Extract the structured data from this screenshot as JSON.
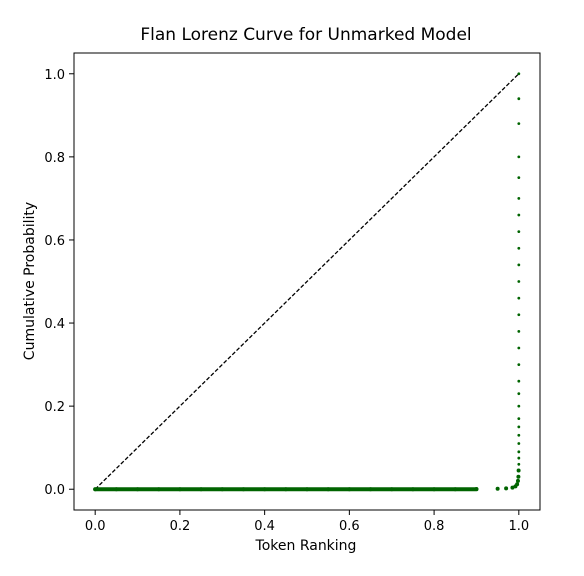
{
  "chart_data": {
    "type": "scatter",
    "title": "Flan Lorenz Curve for Unmarked Model",
    "xlabel": "Token Ranking",
    "ylabel": "Cumulative Probability",
    "xlim": [
      -0.05,
      1.05
    ],
    "ylim": [
      -0.05,
      1.05
    ],
    "xticks": [
      0.0,
      0.2,
      0.4,
      0.6,
      0.8,
      1.0
    ],
    "yticks": [
      0.0,
      0.2,
      0.4,
      0.6,
      0.8,
      1.0
    ],
    "xtick_labels": [
      "0.0",
      "0.2",
      "0.4",
      "0.6",
      "0.8",
      "1.0"
    ],
    "ytick_labels": [
      "0.0",
      "0.2",
      "0.4",
      "0.6",
      "0.8",
      "1.0"
    ],
    "grid": false,
    "legend": "none",
    "reference_line": {
      "style": "dashed",
      "color": "#000000",
      "x": [
        0.0,
        1.0
      ],
      "y": [
        0.0,
        1.0
      ]
    },
    "series": [
      {
        "color": "#006400",
        "marker": "point",
        "x": [
          0.0,
          0.05,
          0.1,
          0.15,
          0.2,
          0.25,
          0.3,
          0.35,
          0.4,
          0.45,
          0.5,
          0.55,
          0.6,
          0.65,
          0.7,
          0.75,
          0.8,
          0.85,
          0.9,
          0.95,
          0.97,
          0.985,
          0.992,
          0.996,
          0.998,
          0.999,
          0.9995,
          1.0,
          1.0,
          1.0,
          1.0,
          1.0,
          1.0,
          1.0,
          1.0,
          1.0,
          1.0,
          1.0,
          1.0,
          1.0,
          1.0,
          1.0,
          1.0,
          1.0,
          1.0,
          1.0,
          1.0,
          1.0,
          1.0,
          1.0,
          1.0,
          1.0,
          1.0
        ],
        "y": [
          0.0,
          0.0,
          0.0,
          0.0,
          0.0,
          0.0,
          0.0,
          0.0,
          0.0,
          0.0,
          0.0,
          0.0,
          0.0,
          0.0,
          0.0,
          0.0,
          0.0,
          0.0,
          0.0005,
          0.001,
          0.002,
          0.004,
          0.007,
          0.012,
          0.02,
          0.03,
          0.045,
          0.06,
          0.075,
          0.09,
          0.11,
          0.13,
          0.15,
          0.17,
          0.2,
          0.23,
          0.26,
          0.3,
          0.34,
          0.38,
          0.42,
          0.46,
          0.5,
          0.54,
          0.58,
          0.62,
          0.66,
          0.7,
          0.75,
          0.8,
          0.88,
          0.94,
          1.0
        ]
      }
    ]
  }
}
